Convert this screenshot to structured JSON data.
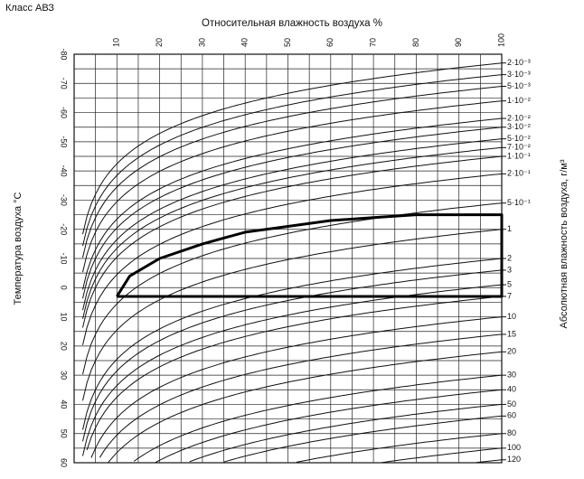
{
  "page_title": "Класс АВЗ",
  "chart_data": {
    "type": "line",
    "title": "",
    "x_axis_label": "Относительная влажность воздуха %",
    "x_ticks": [
      "10",
      "20",
      "30",
      "40",
      "50",
      "60",
      "70",
      "80",
      "90",
      "100"
    ],
    "xlim": [
      0,
      100
    ],
    "y_left_label": "Температура воздуха °C",
    "y_left_ticks": [
      "-80",
      "-70",
      "-60",
      "-50",
      "-40",
      "-30",
      "-20",
      "-10",
      "0",
      "10",
      "20",
      "30",
      "40",
      "50",
      "60"
    ],
    "ylim": [
      -80,
      60
    ],
    "y_left_inverted": true,
    "y_right_label": "Абсолютная влажность воздуха, г/м³",
    "y_right_ticks": [
      {
        "label": "2·10⁻³",
        "t": -77
      },
      {
        "label": "3·10⁻³",
        "t": -73
      },
      {
        "label": "5·10⁻³",
        "t": -69
      },
      {
        "label": "1·10⁻²",
        "t": -64
      },
      {
        "label": "2·10⁻²",
        "t": -58
      },
      {
        "label": "3·10⁻²",
        "t": -55
      },
      {
        "label": "5·10⁻²",
        "t": -51
      },
      {
        "label": "7·10⁻²",
        "t": -48
      },
      {
        "label": "1·10⁻¹",
        "t": -45
      },
      {
        "label": "2·10⁻¹",
        "t": -39
      },
      {
        "label": "5·10⁻¹",
        "t": -29
      },
      {
        "label": "1",
        "t": -20
      },
      {
        "label": "2",
        "t": -10
      },
      {
        "label": "3",
        "t": -6
      },
      {
        "label": "5",
        "t": -1
      },
      {
        "label": "7",
        "t": 3
      },
      {
        "label": "10",
        "t": 10
      },
      {
        "label": "15",
        "t": 16
      },
      {
        "label": "20",
        "t": 22
      },
      {
        "label": "30",
        "t": 30
      },
      {
        "label": "40",
        "t": 35
      },
      {
        "label": "50",
        "t": 40
      },
      {
        "label": "60",
        "t": 44
      },
      {
        "label": "80",
        "t": 50
      },
      {
        "label": "100",
        "t": 55
      },
      {
        "label": "120",
        "t": 59
      }
    ],
    "grid": true,
    "series": [
      {
        "type": "boundary",
        "points": [
          {
            "x": 10,
            "y": 3
          },
          {
            "x": 13,
            "y": -4
          },
          {
            "x": 20,
            "y": -10
          },
          {
            "x": 30,
            "y": -15
          },
          {
            "x": 40,
            "y": -19
          },
          {
            "x": 50,
            "y": -21
          },
          {
            "x": 60,
            "y": -23
          },
          {
            "x": 70,
            "y": -24
          },
          {
            "x": 80,
            "y": -25
          },
          {
            "x": 90,
            "y": -25
          },
          {
            "x": 100,
            "y": -25
          },
          {
            "x": 100,
            "y": 3
          },
          {
            "x": 10,
            "y": 3
          }
        ]
      }
    ]
  }
}
